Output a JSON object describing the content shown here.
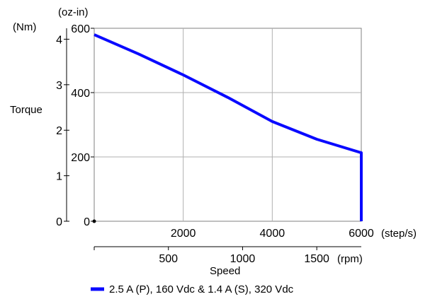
{
  "chart_data": {
    "type": "line",
    "title": "",
    "ylabel": "Torque",
    "xlabel": "Speed",
    "left_axis": {
      "unit": "(Nm)",
      "ticks": [
        0,
        1,
        2,
        3,
        4
      ],
      "range": [
        0,
        4.24
      ]
    },
    "right_axis": {
      "unit": "(oz-in)",
      "ticks": [
        0,
        200,
        400,
        600
      ],
      "range": [
        0,
        600
      ]
    },
    "x_axis": {
      "unit": "(step/s)",
      "ticks": [
        2000,
        4000,
        6000
      ],
      "range": [
        0,
        6000
      ]
    },
    "x_axis_secondary": {
      "unit": "(rpm)",
      "ticks": [
        500,
        1000,
        1500
      ],
      "range": [
        0,
        1800
      ]
    },
    "grid": true,
    "legend_position": "bottom",
    "series": [
      {
        "name": "2.5 A (P), 160 Vdc & 1.4 A (S), 320 Vdc",
        "color": "#0a0aff",
        "x": [
          0,
          1000,
          2000,
          3000,
          4000,
          5000,
          6000,
          6000
        ],
        "y": [
          580,
          520,
          455,
          385,
          310,
          255,
          213,
          0
        ]
      }
    ]
  }
}
